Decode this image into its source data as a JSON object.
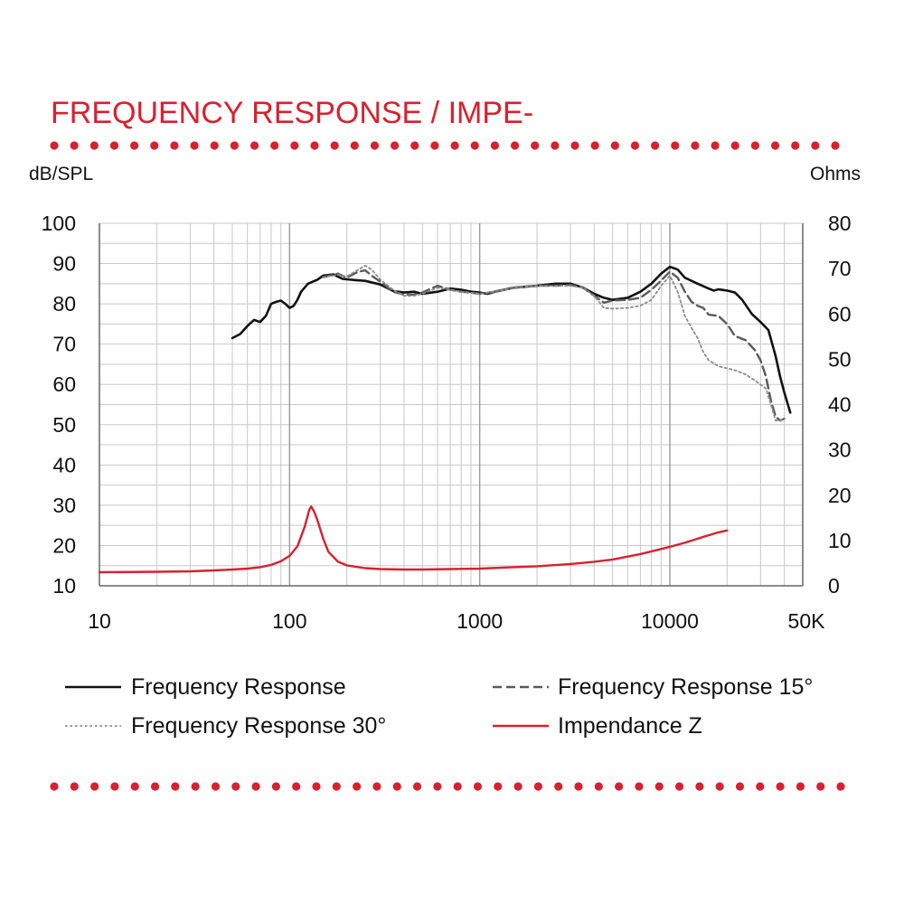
{
  "header": {
    "title": "FREQUENCY RESPONSE / IMPE-"
  },
  "colors": {
    "accent": "#d8202f",
    "frequency_response": "#111111",
    "frequency_response_15": "#5a5a5a",
    "frequency_response_30": "#8c8c8c",
    "impedance": "#d8202f",
    "grid": "#c8c8c8"
  },
  "chart_data": {
    "type": "line",
    "title": "",
    "xlabel": "",
    "ylabel": "dB/SPL",
    "y2label": "Ohms",
    "xscale": "log",
    "xlim": [
      10,
      50000
    ],
    "ylim": [
      10,
      100
    ],
    "y2lim": [
      0,
      80
    ],
    "grid": true,
    "legend_position": "bottom",
    "x_ticks": [
      {
        "value": 10,
        "label": "10"
      },
      {
        "value": 100,
        "label": "100"
      },
      {
        "value": 1000,
        "label": "1000"
      },
      {
        "value": 10000,
        "label": "10000"
      },
      {
        "value": 50000,
        "label": "50K"
      }
    ],
    "y_ticks": [
      "100",
      "90",
      "80",
      "70",
      "60",
      "50",
      "40",
      "30",
      "20",
      "10"
    ],
    "y2_ticks": [
      "80",
      "70",
      "60",
      "50",
      "40",
      "30",
      "20",
      "10",
      "0"
    ],
    "series": [
      {
        "name": "Frequency Response",
        "axis": "left",
        "style": "solid",
        "points": [
          [
            50,
            71.5
          ],
          [
            55,
            72.5
          ],
          [
            60,
            74.5
          ],
          [
            65,
            76
          ],
          [
            70,
            75.5
          ],
          [
            75,
            77
          ],
          [
            80,
            80
          ],
          [
            85,
            80.5
          ],
          [
            90,
            80.8
          ],
          [
            95,
            80
          ],
          [
            100,
            79
          ],
          [
            105,
            79.5
          ],
          [
            110,
            81
          ],
          [
            115,
            83
          ],
          [
            125,
            85
          ],
          [
            140,
            86
          ],
          [
            150,
            87
          ],
          [
            170,
            87.3
          ],
          [
            190,
            86.2
          ],
          [
            220,
            85.9
          ],
          [
            250,
            85.7
          ],
          [
            300,
            84.8
          ],
          [
            350,
            83.2
          ],
          [
            400,
            82.8
          ],
          [
            450,
            83
          ],
          [
            500,
            82.5
          ],
          [
            600,
            83
          ],
          [
            700,
            83.8
          ],
          [
            800,
            83.5
          ],
          [
            900,
            83
          ],
          [
            1000,
            82.8
          ],
          [
            1100,
            82.5
          ],
          [
            1200,
            83
          ],
          [
            1500,
            84
          ],
          [
            2000,
            84.5
          ],
          [
            2500,
            85
          ],
          [
            3000,
            85
          ],
          [
            3500,
            84
          ],
          [
            4000,
            82.5
          ],
          [
            4500,
            81.5
          ],
          [
            5000,
            81
          ],
          [
            6000,
            81.5
          ],
          [
            7000,
            83
          ],
          [
            8000,
            85
          ],
          [
            9000,
            87.5
          ],
          [
            10000,
            89.2
          ],
          [
            11000,
            88.5
          ],
          [
            12000,
            86.5
          ],
          [
            14000,
            85
          ],
          [
            16000,
            83.8
          ],
          [
            17000,
            83.3
          ],
          [
            18000,
            83.6
          ],
          [
            20000,
            83.3
          ],
          [
            22000,
            82.8
          ],
          [
            24000,
            81
          ],
          [
            27000,
            77.5
          ],
          [
            30000,
            75.5
          ],
          [
            33000,
            73.5
          ],
          [
            36000,
            67
          ],
          [
            38000,
            62
          ],
          [
            40000,
            58
          ],
          [
            43000,
            53
          ]
        ]
      },
      {
        "name": "Frequency Response 15°",
        "axis": "left",
        "style": "dashed",
        "points": [
          [
            150,
            86.6
          ],
          [
            180,
            87.5
          ],
          [
            200,
            86.5
          ],
          [
            230,
            88
          ],
          [
            250,
            88.3
          ],
          [
            270,
            87
          ],
          [
            300,
            85.5
          ],
          [
            350,
            83
          ],
          [
            400,
            82.3
          ],
          [
            450,
            82.3
          ],
          [
            500,
            82.8
          ],
          [
            600,
            84.5
          ],
          [
            700,
            83.5
          ],
          [
            800,
            83
          ],
          [
            1000,
            82.5
          ],
          [
            1200,
            83
          ],
          [
            1500,
            84
          ],
          [
            2000,
            84.5
          ],
          [
            2500,
            84.5
          ],
          [
            3000,
            84.7
          ],
          [
            3500,
            84
          ],
          [
            4000,
            82
          ],
          [
            4500,
            80.3
          ],
          [
            5000,
            80.8
          ],
          [
            6000,
            81
          ],
          [
            7000,
            81.5
          ],
          [
            8000,
            83.5
          ],
          [
            9000,
            85.8
          ],
          [
            10000,
            88
          ],
          [
            11000,
            86.5
          ],
          [
            12000,
            83
          ],
          [
            13000,
            80.5
          ],
          [
            14000,
            79.5
          ],
          [
            15000,
            79
          ],
          [
            16000,
            77.3
          ],
          [
            18000,
            77
          ],
          [
            20000,
            75
          ],
          [
            22000,
            72
          ],
          [
            25000,
            71
          ],
          [
            28000,
            68.5
          ],
          [
            30000,
            66
          ],
          [
            32000,
            62
          ],
          [
            34000,
            56
          ],
          [
            36000,
            52
          ],
          [
            38000,
            51
          ],
          [
            40000,
            51.5
          ]
        ]
      },
      {
        "name": "Frequency Response 30°",
        "axis": "left",
        "style": "dotted",
        "points": [
          [
            150,
            86.6
          ],
          [
            180,
            87.2
          ],
          [
            200,
            86.8
          ],
          [
            230,
            88.5
          ],
          [
            250,
            89.5
          ],
          [
            270,
            88.5
          ],
          [
            300,
            86
          ],
          [
            350,
            83.5
          ],
          [
            400,
            82
          ],
          [
            450,
            82
          ],
          [
            500,
            82.5
          ],
          [
            600,
            84
          ],
          [
            700,
            83.5
          ],
          [
            800,
            83
          ],
          [
            1000,
            82.5
          ],
          [
            1200,
            83
          ],
          [
            1500,
            84
          ],
          [
            2000,
            84.5
          ],
          [
            2500,
            84.5
          ],
          [
            3000,
            84.5
          ],
          [
            3500,
            84
          ],
          [
            4000,
            82
          ],
          [
            4500,
            79
          ],
          [
            5000,
            78.8
          ],
          [
            6000,
            79
          ],
          [
            7000,
            79.5
          ],
          [
            8000,
            81
          ],
          [
            9000,
            84.5
          ],
          [
            10000,
            87
          ],
          [
            11000,
            83
          ],
          [
            12000,
            77
          ],
          [
            13000,
            74
          ],
          [
            14000,
            71.5
          ],
          [
            15000,
            68
          ],
          [
            16000,
            66
          ],
          [
            18000,
            64.5
          ],
          [
            20000,
            64
          ],
          [
            22000,
            63.5
          ],
          [
            25000,
            62.5
          ],
          [
            28000,
            61
          ],
          [
            32000,
            59
          ],
          [
            34000,
            55
          ],
          [
            36000,
            51
          ],
          [
            38000,
            51
          ],
          [
            40000,
            51.5
          ]
        ]
      },
      {
        "name": "Impendance Z",
        "axis": "right",
        "style": "solid",
        "points": [
          [
            10,
            3
          ],
          [
            20,
            3.1
          ],
          [
            30,
            3.2
          ],
          [
            40,
            3.4
          ],
          [
            50,
            3.6
          ],
          [
            60,
            3.8
          ],
          [
            70,
            4.1
          ],
          [
            80,
            4.6
          ],
          [
            90,
            5.4
          ],
          [
            100,
            6.6
          ],
          [
            110,
            8.7
          ],
          [
            120,
            13
          ],
          [
            127,
            16.8
          ],
          [
            130,
            17.5
          ],
          [
            135,
            16.3
          ],
          [
            140,
            14.5
          ],
          [
            150,
            10.5
          ],
          [
            160,
            7.5
          ],
          [
            180,
            5.3
          ],
          [
            200,
            4.5
          ],
          [
            250,
            3.9
          ],
          [
            300,
            3.7
          ],
          [
            400,
            3.6
          ],
          [
            500,
            3.6
          ],
          [
            700,
            3.7
          ],
          [
            1000,
            3.8
          ],
          [
            1500,
            4.1
          ],
          [
            2000,
            4.3
          ],
          [
            3000,
            4.8
          ],
          [
            4000,
            5.3
          ],
          [
            5000,
            5.8
          ],
          [
            7000,
            7
          ],
          [
            10000,
            8.6
          ],
          [
            12000,
            9.5
          ],
          [
            15000,
            10.8
          ],
          [
            18000,
            11.8
          ],
          [
            20000,
            12.2
          ]
        ]
      }
    ]
  },
  "legend": [
    {
      "label": "Frequency Response",
      "style": "solid",
      "color": "#111111"
    },
    {
      "label": "Frequency Response 15°",
      "style": "dashed",
      "color": "#5a5a5a"
    },
    {
      "label": "Frequency Response 30°",
      "style": "dotted",
      "color": "#8c8c8c"
    },
    {
      "label": "Impendance Z",
      "style": "solid",
      "color": "#d8202f"
    }
  ]
}
